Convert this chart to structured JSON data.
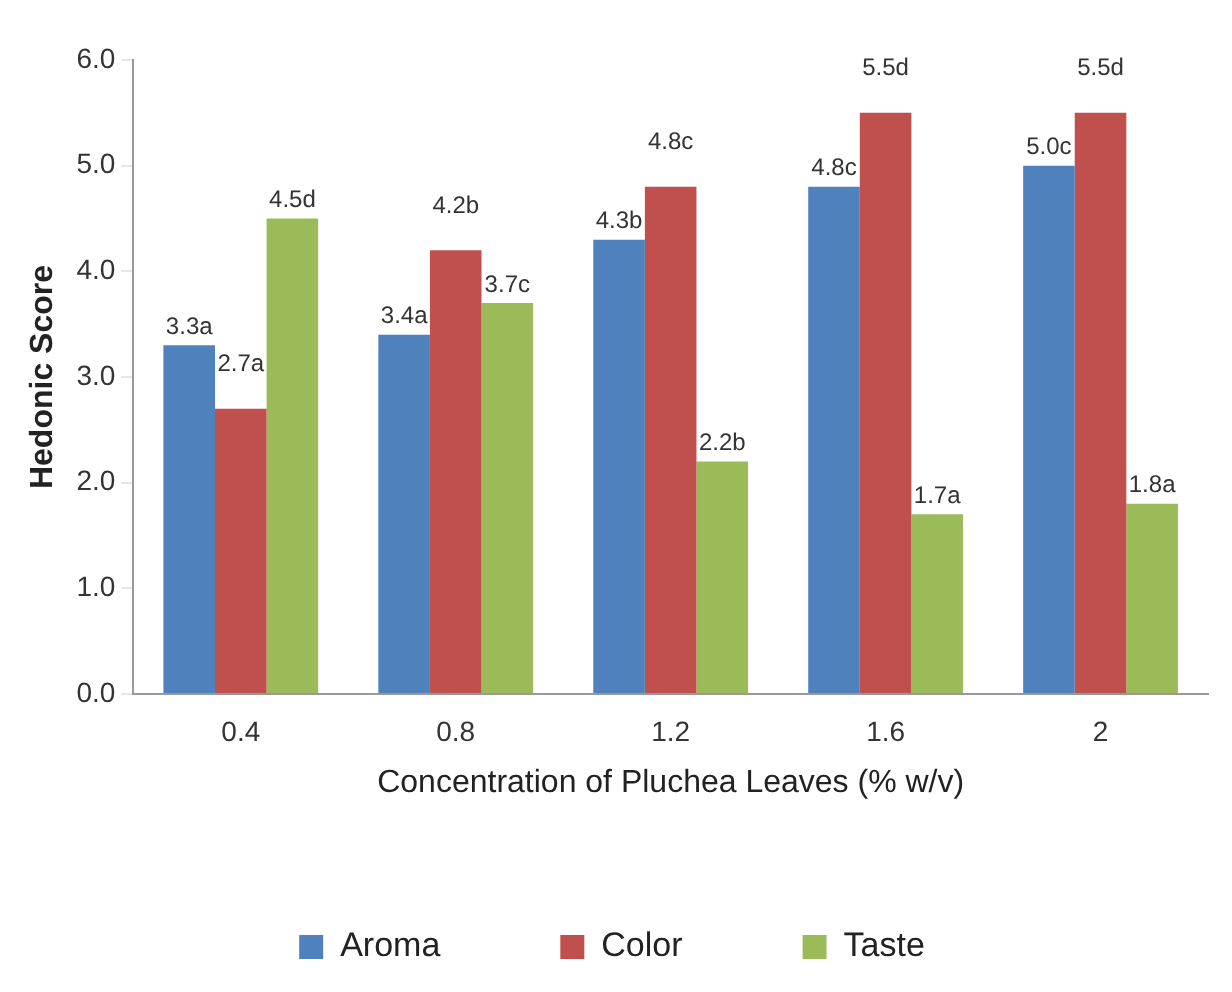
{
  "chart_data": {
    "type": "bar",
    "xlabel": "Concentration of Pluchea Leaves (% w/v)",
    "ylabel": "Hedonic Score",
    "categories": [
      "0.4",
      "0.8",
      "1.2",
      "1.6",
      "2"
    ],
    "series": [
      {
        "name": "Aroma",
        "color": "#4f81bd",
        "values": [
          3.3,
          3.4,
          4.3,
          4.8,
          5.0
        ],
        "value_labels": [
          "3.3a",
          "3.4a",
          "4.3b",
          "4.8c",
          "5.0c"
        ]
      },
      {
        "name": "Color",
        "color": "#c0504d",
        "values": [
          2.7,
          4.2,
          4.8,
          5.5,
          5.5
        ],
        "value_labels": [
          "2.7a",
          "4.2b",
          "4.8c",
          "5.5d",
          "5.5d"
        ]
      },
      {
        "name": "Taste",
        "color": "#9bbb59",
        "values": [
          4.5,
          3.7,
          2.2,
          1.7,
          1.8
        ],
        "value_labels": [
          "4.5d",
          "3.7c",
          "2.2b",
          "1.7a",
          "1.8a"
        ]
      }
    ],
    "ylim": [
      0,
      6
    ],
    "yticks": [
      {
        "value": 0,
        "label": "0.0"
      },
      {
        "value": 1,
        "label": "1.0"
      },
      {
        "value": 2,
        "label": "2.0"
      },
      {
        "value": 3,
        "label": "3.0"
      },
      {
        "value": 4,
        "label": "4.0"
      },
      {
        "value": 5,
        "label": "5.0"
      },
      {
        "value": 6,
        "label": "6.0"
      }
    ],
    "grid": false,
    "legend": "bottom"
  }
}
